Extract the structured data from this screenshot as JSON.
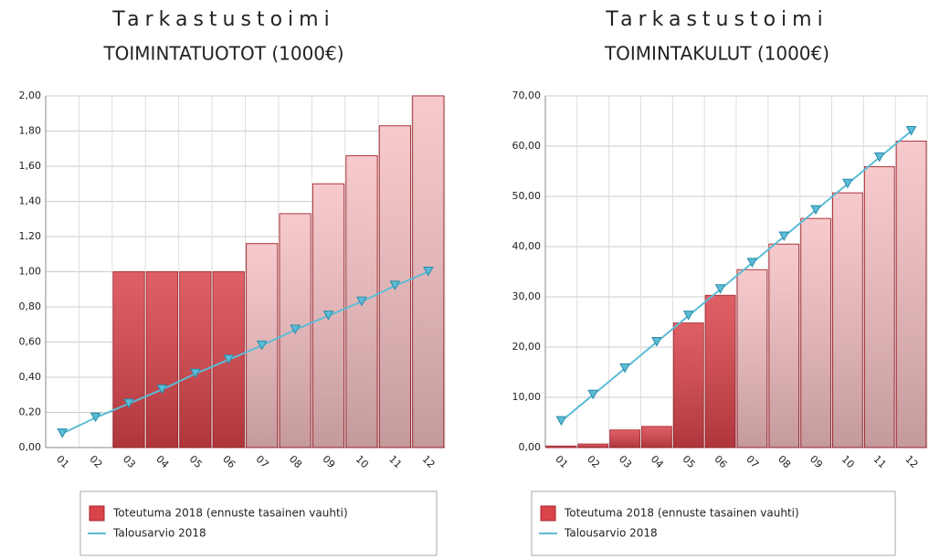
{
  "chart_data": [
    {
      "type": "bar",
      "title": "Tarkastustoimi",
      "subtitle": "TOIMINTATUOTOT (1000€)",
      "categories": [
        "01",
        "02",
        "03",
        "04",
        "05",
        "06",
        "07",
        "08",
        "09",
        "10",
        "11",
        "12"
      ],
      "series": [
        {
          "name": "Toteutuma 2018 (ennuste tasainen vauhti)",
          "color": "#d9434a",
          "colors": [
            "#d9434a",
            "#d9434a",
            "#d9434a",
            "#d9434a",
            "#d9434a",
            "#d9434a",
            "#f5c0c3",
            "#f5c0c3",
            "#f5c0c3",
            "#f5c0c3",
            "#f5c0c3",
            "#f5c0c3"
          ],
          "values": [
            0,
            0,
            1.0,
            1.0,
            1.0,
            1.0,
            1.16,
            1.33,
            1.5,
            1.66,
            1.83,
            2.0
          ]
        },
        {
          "name": "Talousarvio 2018",
          "type": "line",
          "color": "#5bbcd6",
          "values": [
            0.08,
            0.17,
            0.25,
            0.33,
            0.42,
            0.5,
            0.58,
            0.67,
            0.75,
            0.83,
            0.92,
            1.0
          ]
        }
      ],
      "ylim": [
        0,
        2
      ],
      "yticks": [
        {
          "value": 0,
          "label": "0,00"
        },
        {
          "value": 0.2,
          "label": "0,20"
        },
        {
          "value": 0.4,
          "label": "0,40"
        },
        {
          "value": 0.6,
          "label": "0,60"
        },
        {
          "value": 0.8,
          "label": "0,80"
        },
        {
          "value": 1.0,
          "label": "1,00"
        },
        {
          "value": 1.2,
          "label": "1,20"
        },
        {
          "value": 1.4,
          "label": "1,40"
        },
        {
          "value": 1.6,
          "label": "1,60"
        },
        {
          "value": 1.8,
          "label": "1,80"
        },
        {
          "value": 2.0,
          "label": "2,00"
        }
      ],
      "grid": true
    },
    {
      "type": "bar",
      "title": "Tarkastustoimi",
      "subtitle": "TOIMINTAKULUT (1000€)",
      "categories": [
        "01",
        "02",
        "03",
        "04",
        "05",
        "06",
        "07",
        "08",
        "09",
        "10",
        "11",
        "12"
      ],
      "series": [
        {
          "name": "Toteutuma 2018 (ennuste tasainen vauhti)",
          "color": "#d9434a",
          "colors": [
            "#d9434a",
            "#d9434a",
            "#d9434a",
            "#d9434a",
            "#d9434a",
            "#d9434a",
            "#f5c0c3",
            "#f5c0c3",
            "#f5c0c3",
            "#f5c0c3",
            "#f5c0c3",
            "#f5c0c3"
          ],
          "values": [
            0.3,
            0.7,
            3.5,
            4.2,
            24.8,
            30.3,
            35.4,
            40.5,
            45.6,
            50.7,
            55.9,
            61.0
          ]
        },
        {
          "name": "Talousarvio 2018",
          "type": "line",
          "color": "#5bbcd6",
          "values": [
            5.25,
            10.5,
            15.75,
            21,
            26.25,
            31.5,
            36.75,
            42,
            47.25,
            52.5,
            57.75,
            63
          ]
        }
      ],
      "ylim": [
        0,
        70
      ],
      "yticks": [
        {
          "value": 0,
          "label": "0,00"
        },
        {
          "value": 10,
          "label": "10,00"
        },
        {
          "value": 20,
          "label": "20,00"
        },
        {
          "value": 30,
          "label": "30,00"
        },
        {
          "value": 40,
          "label": "40,00"
        },
        {
          "value": 50,
          "label": "50,00"
        },
        {
          "value": 60,
          "label": "60,00"
        },
        {
          "value": 70,
          "label": "70,00"
        }
      ],
      "grid": true
    }
  ]
}
